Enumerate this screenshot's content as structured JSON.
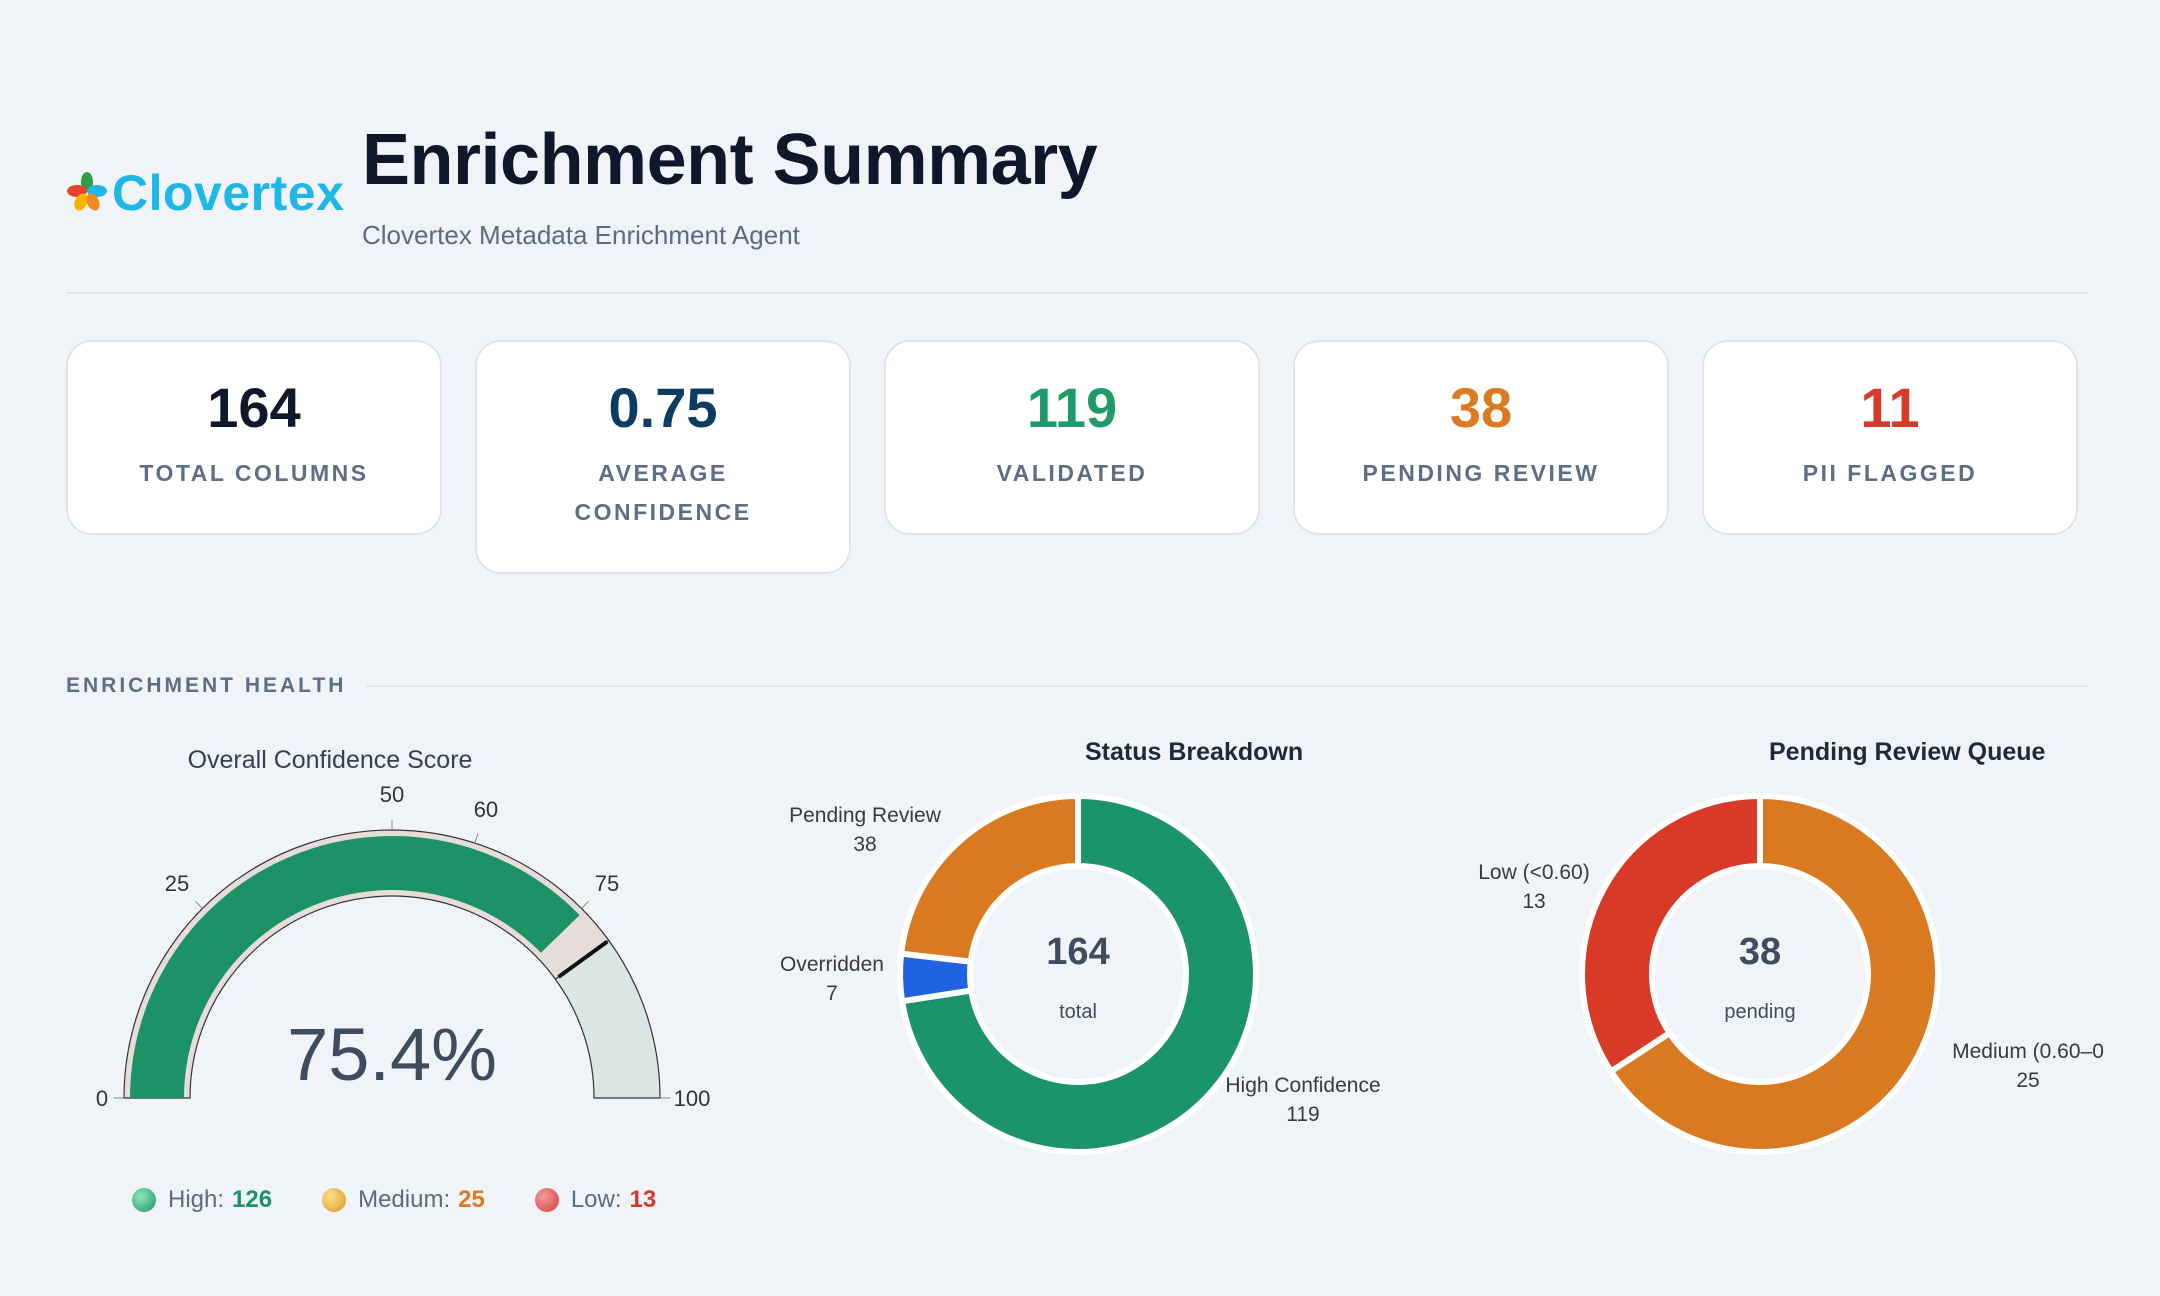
{
  "header": {
    "brand": "Clovertex",
    "title": "Enrichment Summary",
    "subtitle": "Clovertex Metadata Enrichment Agent"
  },
  "cards": [
    {
      "value": "164",
      "label": "TOTAL COLUMNS",
      "color": "#0f172a"
    },
    {
      "value": "0.75",
      "label": "AVERAGE CONFIDENCE",
      "color": "#0c3c60"
    },
    {
      "value": "119",
      "label": "VALIDATED",
      "color": "#1f9a6a"
    },
    {
      "value": "38",
      "label": "PENDING REVIEW",
      "color": "#dc7a22"
    },
    {
      "value": "11",
      "label": "PII FLAGGED",
      "color": "#d63a2a"
    }
  ],
  "section": {
    "title": "ENRICHMENT HEALTH"
  },
  "gauge": {
    "title": "Overall Confidence Score",
    "value_text": "75.4%",
    "value": 75.4,
    "range": [
      0,
      100
    ],
    "ticks": [
      "0",
      "25",
      "50",
      "60",
      "75",
      "100"
    ],
    "tick_values": [
      0,
      25,
      50,
      60,
      75,
      100
    ],
    "threshold": 80,
    "bar_color": "#1d9268",
    "track_color": "#d9e6e4"
  },
  "legend": {
    "items": [
      {
        "label": "High:",
        "value": "126",
        "color": "#1d9268"
      },
      {
        "label": "Medium:",
        "value": "25",
        "color": "#dc7a22"
      },
      {
        "label": "Low:",
        "value": "13",
        "color": "#d63a2a"
      }
    ]
  },
  "chart_data": [
    {
      "type": "pie",
      "title": "Status Breakdown",
      "center_value": "164",
      "center_label": "total",
      "categories": [
        "High Confidence",
        "Overridden",
        "Pending Review"
      ],
      "values": [
        119,
        7,
        38
      ],
      "colors": [
        "#1b946c",
        "#1f63e0",
        "#d97a20"
      ]
    },
    {
      "type": "pie",
      "title": "Pending Review Queue",
      "center_value": "38",
      "center_label": "pending",
      "categories": [
        "Medium (0.60–0",
        "Low (<0.60)"
      ],
      "values": [
        25,
        13
      ],
      "colors": [
        "#d97a20",
        "#d93a28"
      ]
    }
  ]
}
